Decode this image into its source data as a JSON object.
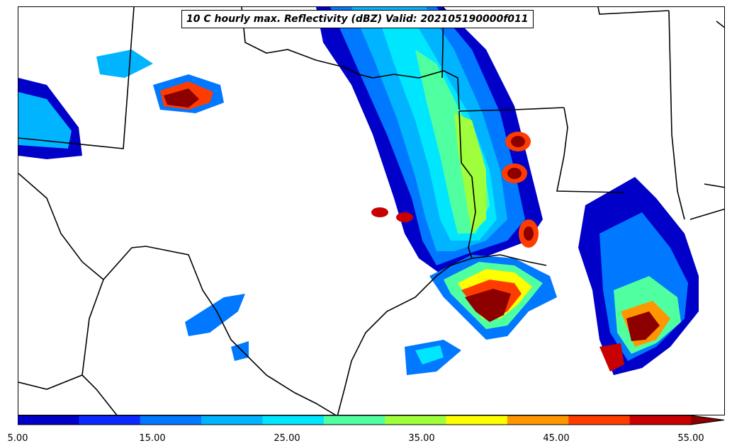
{
  "title": "10 C hourly max. Reflectivity (dBZ) Valid: 202105190000f011",
  "colorbar": {
    "ticks": [
      "5.00",
      "15.00",
      "25.00",
      "35.00",
      "45.00",
      "55.00"
    ],
    "tick_values": [
      5,
      15,
      25,
      35,
      45,
      55
    ],
    "min": 5,
    "max": 55,
    "extend": "max",
    "colors": [
      "#0000c8",
      "#0a28ff",
      "#0078ff",
      "#00b4ff",
      "#00e6ff",
      "#50ffa0",
      "#a0ff3c",
      "#ffff00",
      "#ff9600",
      "#ff3c00",
      "#c80000",
      "#8c0000"
    ]
  }
}
